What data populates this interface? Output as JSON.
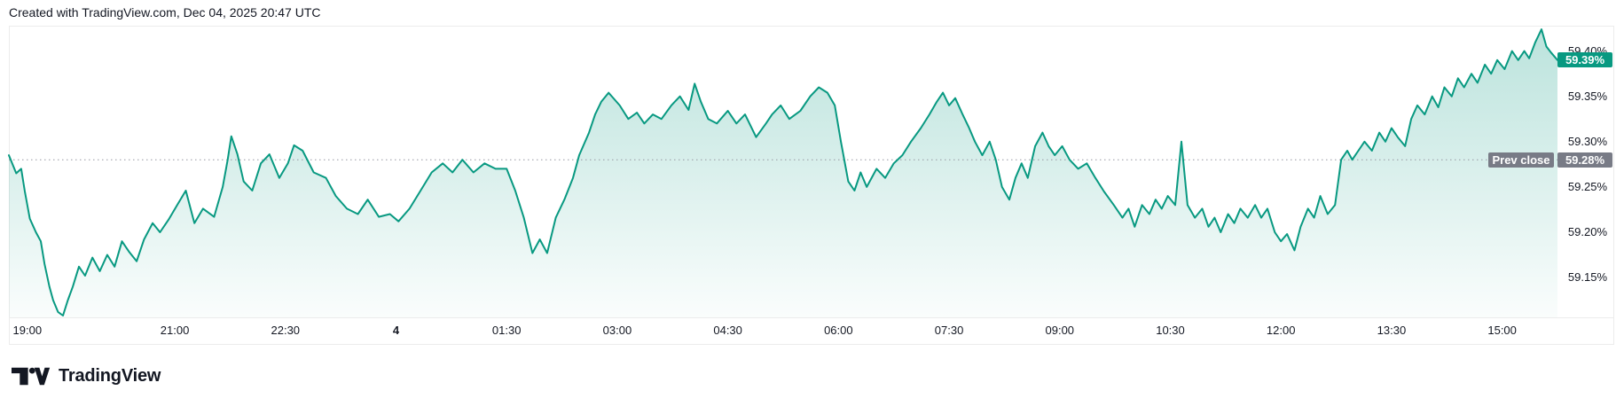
{
  "attribution": {
    "text": "Created with TradingView.com, Dec 04, 2025 20:47 UTC"
  },
  "footer": {
    "brand": "TradingView"
  },
  "colors": {
    "line": "#089981",
    "fill_top": "rgba(8,153,129,0.28)",
    "fill_bottom": "rgba(8,153,129,0.02)",
    "prev_close_badge": "#787b86",
    "prev_close_line": "#9598a1",
    "last_value_badge": "#089981",
    "axis_text": "#131722",
    "frame_border": "#ececec"
  },
  "chart_data": {
    "type": "area",
    "title": "",
    "xlabel": "",
    "ylabel": "",
    "legend": "none",
    "grid": "off",
    "ylim": [
      59.106,
      59.428
    ],
    "time_span_minutes": 1260,
    "y_ticks": [
      {
        "label": "59.40%",
        "value": 59.4
      },
      {
        "label": "59.35%",
        "value": 59.35
      },
      {
        "label": "59.30%",
        "value": 59.3
      },
      {
        "label": "59.25%",
        "value": 59.25
      },
      {
        "label": "59.20%",
        "value": 59.2
      },
      {
        "label": "59.15%",
        "value": 59.15
      }
    ],
    "x_ticks": [
      {
        "label": "19:00",
        "minute": 15,
        "bold": false
      },
      {
        "label": "21:00",
        "minute": 135,
        "bold": false
      },
      {
        "label": "22:30",
        "minute": 225,
        "bold": false
      },
      {
        "label": "4",
        "minute": 315,
        "bold": true
      },
      {
        "label": "01:30",
        "minute": 405,
        "bold": false
      },
      {
        "label": "03:00",
        "minute": 495,
        "bold": false
      },
      {
        "label": "04:30",
        "minute": 585,
        "bold": false
      },
      {
        "label": "06:00",
        "minute": 675,
        "bold": false
      },
      {
        "label": "07:30",
        "minute": 765,
        "bold": false
      },
      {
        "label": "09:00",
        "minute": 855,
        "bold": false
      },
      {
        "label": "10:30",
        "minute": 945,
        "bold": false
      },
      {
        "label": "12:00",
        "minute": 1035,
        "bold": false
      },
      {
        "label": "13:30",
        "minute": 1125,
        "bold": false
      },
      {
        "label": "15:00",
        "minute": 1215,
        "bold": false
      }
    ],
    "prev_close": {
      "label": "Prev close",
      "value_label": "59.28%",
      "value": 59.28
    },
    "last": {
      "value_label": "59.39%",
      "value": 59.39
    },
    "points": [
      [
        0,
        59.285
      ],
      [
        6,
        59.265
      ],
      [
        10,
        59.27
      ],
      [
        13,
        59.245
      ],
      [
        17,
        59.215
      ],
      [
        22,
        59.2
      ],
      [
        26,
        59.19
      ],
      [
        29,
        59.165
      ],
      [
        33,
        59.14
      ],
      [
        36,
        59.125
      ],
      [
        40,
        59.112
      ],
      [
        44,
        59.108
      ],
      [
        48,
        59.125
      ],
      [
        52,
        59.14
      ],
      [
        57,
        59.162
      ],
      [
        62,
        59.152
      ],
      [
        68,
        59.172
      ],
      [
        74,
        59.157
      ],
      [
        80,
        59.175
      ],
      [
        86,
        59.162
      ],
      [
        92,
        59.19
      ],
      [
        98,
        59.178
      ],
      [
        104,
        59.168
      ],
      [
        110,
        59.192
      ],
      [
        117,
        59.21
      ],
      [
        123,
        59.2
      ],
      [
        130,
        59.214
      ],
      [
        137,
        59.23
      ],
      [
        144,
        59.246
      ],
      [
        151,
        59.21
      ],
      [
        158,
        59.226
      ],
      [
        167,
        59.217
      ],
      [
        174,
        59.25
      ],
      [
        178,
        59.28
      ],
      [
        181,
        59.306
      ],
      [
        186,
        59.286
      ],
      [
        191,
        59.256
      ],
      [
        198,
        59.246
      ],
      [
        205,
        59.276
      ],
      [
        212,
        59.286
      ],
      [
        220,
        59.26
      ],
      [
        227,
        59.276
      ],
      [
        232,
        59.296
      ],
      [
        239,
        59.29
      ],
      [
        248,
        59.266
      ],
      [
        258,
        59.26
      ],
      [
        266,
        59.24
      ],
      [
        275,
        59.226
      ],
      [
        284,
        59.22
      ],
      [
        292,
        59.236
      ],
      [
        301,
        59.217
      ],
      [
        310,
        59.22
      ],
      [
        317,
        59.212
      ],
      [
        326,
        59.226
      ],
      [
        335,
        59.246
      ],
      [
        344,
        59.266
      ],
      [
        353,
        59.276
      ],
      [
        361,
        59.266
      ],
      [
        369,
        59.28
      ],
      [
        378,
        59.266
      ],
      [
        387,
        59.276
      ],
      [
        396,
        59.27
      ],
      [
        405,
        59.27
      ],
      [
        412,
        59.246
      ],
      [
        419,
        59.216
      ],
      [
        426,
        59.177
      ],
      [
        432,
        59.192
      ],
      [
        438,
        59.177
      ],
      [
        445,
        59.216
      ],
      [
        452,
        59.236
      ],
      [
        459,
        59.26
      ],
      [
        464,
        59.285
      ],
      [
        472,
        59.31
      ],
      [
        477,
        59.33
      ],
      [
        482,
        59.344
      ],
      [
        488,
        59.354
      ],
      [
        497,
        59.34
      ],
      [
        504,
        59.325
      ],
      [
        511,
        59.332
      ],
      [
        517,
        59.32
      ],
      [
        524,
        59.33
      ],
      [
        531,
        59.325
      ],
      [
        539,
        59.34
      ],
      [
        546,
        59.35
      ],
      [
        553,
        59.335
      ],
      [
        558,
        59.364
      ],
      [
        563,
        59.344
      ],
      [
        569,
        59.325
      ],
      [
        576,
        59.32
      ],
      [
        585,
        59.334
      ],
      [
        592,
        59.32
      ],
      [
        599,
        59.33
      ],
      [
        608,
        59.305
      ],
      [
        616,
        59.32
      ],
      [
        621,
        59.33
      ],
      [
        628,
        59.34
      ],
      [
        635,
        59.325
      ],
      [
        644,
        59.334
      ],
      [
        652,
        59.35
      ],
      [
        659,
        59.36
      ],
      [
        666,
        59.354
      ],
      [
        672,
        59.34
      ],
      [
        677,
        59.3
      ],
      [
        683,
        59.256
      ],
      [
        688,
        59.246
      ],
      [
        693,
        59.266
      ],
      [
        698,
        59.25
      ],
      [
        706,
        59.27
      ],
      [
        713,
        59.26
      ],
      [
        720,
        59.276
      ],
      [
        727,
        59.285
      ],
      [
        734,
        59.3
      ],
      [
        742,
        59.315
      ],
      [
        749,
        59.33
      ],
      [
        755,
        59.344
      ],
      [
        760,
        59.354
      ],
      [
        765,
        59.34
      ],
      [
        770,
        59.348
      ],
      [
        776,
        59.33
      ],
      [
        781,
        59.316
      ],
      [
        786,
        59.3
      ],
      [
        792,
        59.285
      ],
      [
        798,
        59.3
      ],
      [
        803,
        59.28
      ],
      [
        808,
        59.25
      ],
      [
        814,
        59.236
      ],
      [
        819,
        59.26
      ],
      [
        824,
        59.276
      ],
      [
        829,
        59.26
      ],
      [
        835,
        59.295
      ],
      [
        841,
        59.31
      ],
      [
        846,
        59.295
      ],
      [
        851,
        59.285
      ],
      [
        857,
        59.295
      ],
      [
        863,
        59.28
      ],
      [
        870,
        59.27
      ],
      [
        877,
        59.276
      ],
      [
        884,
        59.26
      ],
      [
        891,
        59.245
      ],
      [
        899,
        59.23
      ],
      [
        906,
        59.216
      ],
      [
        911,
        59.226
      ],
      [
        916,
        59.206
      ],
      [
        922,
        59.23
      ],
      [
        928,
        59.22
      ],
      [
        933,
        59.236
      ],
      [
        938,
        59.226
      ],
      [
        943,
        59.24
      ],
      [
        949,
        59.23
      ],
      [
        954,
        59.3
      ],
      [
        959,
        59.23
      ],
      [
        965,
        59.216
      ],
      [
        971,
        59.226
      ],
      [
        976,
        59.206
      ],
      [
        981,
        59.216
      ],
      [
        986,
        59.2
      ],
      [
        992,
        59.22
      ],
      [
        997,
        59.21
      ],
      [
        1002,
        59.226
      ],
      [
        1008,
        59.216
      ],
      [
        1014,
        59.23
      ],
      [
        1019,
        59.216
      ],
      [
        1024,
        59.226
      ],
      [
        1030,
        59.2
      ],
      [
        1035,
        59.19
      ],
      [
        1040,
        59.198
      ],
      [
        1046,
        59.18
      ],
      [
        1051,
        59.206
      ],
      [
        1057,
        59.226
      ],
      [
        1062,
        59.216
      ],
      [
        1067,
        59.24
      ],
      [
        1073,
        59.22
      ],
      [
        1079,
        59.23
      ],
      [
        1084,
        59.28
      ],
      [
        1089,
        59.29
      ],
      [
        1093,
        59.28
      ],
      [
        1098,
        59.29
      ],
      [
        1103,
        59.3
      ],
      [
        1109,
        59.29
      ],
      [
        1115,
        59.31
      ],
      [
        1120,
        59.3
      ],
      [
        1125,
        59.315
      ],
      [
        1130,
        59.305
      ],
      [
        1136,
        59.295
      ],
      [
        1141,
        59.325
      ],
      [
        1146,
        59.34
      ],
      [
        1152,
        59.33
      ],
      [
        1158,
        59.35
      ],
      [
        1163,
        59.338
      ],
      [
        1168,
        59.36
      ],
      [
        1174,
        59.35
      ],
      [
        1179,
        59.37
      ],
      [
        1184,
        59.36
      ],
      [
        1190,
        59.375
      ],
      [
        1195,
        59.365
      ],
      [
        1201,
        59.385
      ],
      [
        1206,
        59.375
      ],
      [
        1211,
        59.39
      ],
      [
        1217,
        59.38
      ],
      [
        1223,
        59.4
      ],
      [
        1228,
        59.39
      ],
      [
        1233,
        59.4
      ],
      [
        1237,
        59.392
      ],
      [
        1242,
        59.41
      ],
      [
        1247,
        59.424
      ],
      [
        1251,
        59.405
      ],
      [
        1255,
        59.398
      ],
      [
        1260,
        59.39
      ]
    ]
  }
}
